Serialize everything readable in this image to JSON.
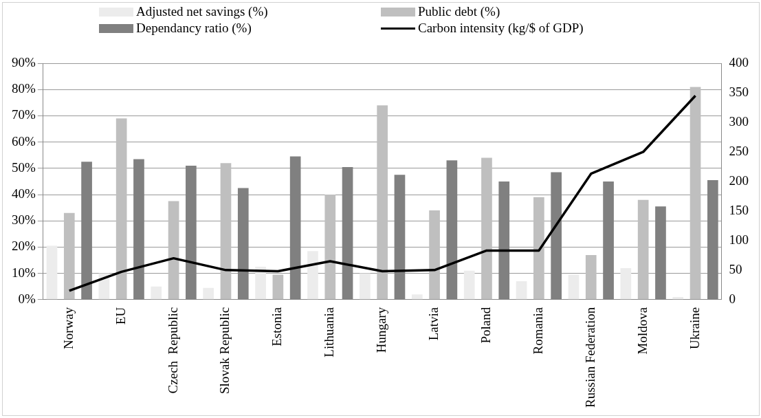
{
  "chart_data": {
    "type": "bar",
    "categories": [
      "Norway",
      "EU",
      "Czech  Republic",
      "Slovak Republic",
      "Estonia",
      "Lithuania",
      "Hungary",
      "Latvia",
      "Poland",
      "Romania",
      "Russian Federation",
      "Moldova",
      "Ukraine"
    ],
    "series": [
      {
        "name": "Adjusted net savings (%)",
        "color": "#ececec",
        "values": [
          20.5,
          10,
          5,
          4.5,
          12.5,
          18.5,
          10,
          2,
          11,
          7,
          9.5,
          12,
          1
        ]
      },
      {
        "name": "Public debt (%)",
        "color": "#bfbfbf",
        "values": [
          33,
          69,
          37.5,
          52,
          9.5,
          40,
          74,
          34,
          54,
          39,
          17,
          38,
          81
        ]
      },
      {
        "name": "Dependancy ratio (%)",
        "color": "#808080",
        "values": [
          52.5,
          53.5,
          51,
          42.5,
          54.5,
          50.5,
          47.5,
          53,
          45,
          48.5,
          45,
          35.5,
          45.5
        ]
      },
      {
        "name": "Carbon intensity (kg/$ of GDP)",
        "color": "#000000",
        "type": "line",
        "axis": "y2",
        "values": [
          15,
          47,
          70,
          50,
          48,
          65,
          48,
          50,
          83,
          83,
          213,
          250,
          345
        ]
      }
    ],
    "ylim": [
      0,
      90
    ],
    "yticks": [
      {
        "value": 0,
        "label": "0%"
      },
      {
        "value": 10,
        "label": "10%"
      },
      {
        "value": 20,
        "label": "20%"
      },
      {
        "value": 30,
        "label": "30%"
      },
      {
        "value": 40,
        "label": "40%"
      },
      {
        "value": 50,
        "label": "50%"
      },
      {
        "value": 60,
        "label": "60%"
      },
      {
        "value": 70,
        "label": "70%"
      },
      {
        "value": 80,
        "label": "80%"
      },
      {
        "value": 90,
        "label": "90%"
      }
    ],
    "y2lim": [
      0,
      400
    ],
    "y2ticks": [
      0,
      50,
      100,
      150,
      200,
      250,
      300,
      350,
      400
    ],
    "grid": "y",
    "legend": "top",
    "marker": "none"
  }
}
